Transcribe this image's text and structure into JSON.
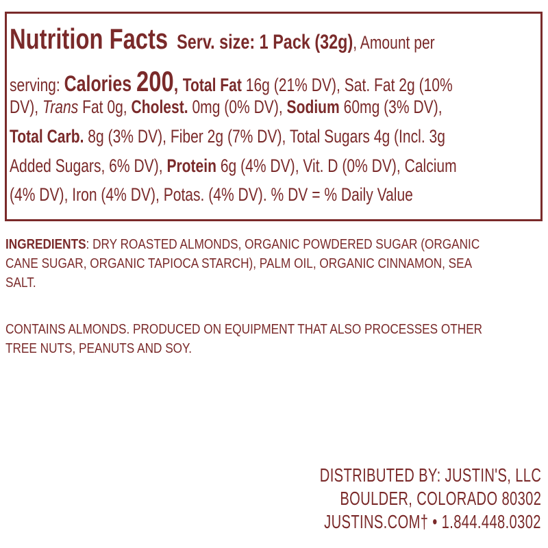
{
  "colors": {
    "text": "#7a2a2a",
    "border": "#7a2a2a",
    "background": "#ffffff"
  },
  "nutrition": {
    "lines": [
      [
        {
          "t": "Nutrition Facts",
          "s": "xl"
        },
        {
          "t": "  Serv. size: 1 Pack (32g)",
          "s": "md"
        },
        {
          "t": ", Amount per",
          "s": ""
        }
      ],
      [
        {
          "t": "serving: ",
          "s": ""
        },
        {
          "t": "Calories ",
          "s": "lg"
        },
        {
          "t": "200",
          "s": "xl"
        },
        {
          "t": ", ",
          "s": "md"
        },
        {
          "t": "Total Fat",
          "s": "b"
        },
        {
          "t": " 16g (21% DV), Sat. Fat 2g (10%",
          "s": ""
        }
      ],
      [
        {
          "t": "DV), ",
          "s": ""
        },
        {
          "t": "Trans",
          "s": "i"
        },
        {
          "t": " Fat 0g, ",
          "s": ""
        },
        {
          "t": "Cholest.",
          "s": "b"
        },
        {
          "t": " 0mg (0% DV), ",
          "s": ""
        },
        {
          "t": "Sodium",
          "s": "b"
        },
        {
          "t": " 60mg (3% DV),",
          "s": ""
        }
      ],
      [
        {
          "t": "Total Carb.",
          "s": "b"
        },
        {
          "t": " 8g (3% DV), Fiber 2g (7% DV), Total Sugars 4g (Incl. 3g",
          "s": ""
        }
      ],
      [
        {
          "t": "Added Sugars, 6% DV), ",
          "s": ""
        },
        {
          "t": "Protein",
          "s": "b"
        },
        {
          "t": " 6g (4% DV), Vit. D (0% DV), Calcium",
          "s": ""
        }
      ],
      [
        {
          "t": "(4% DV), Iron (4% DV), Potas. (4% DV). % DV = % Daily Value",
          "s": ""
        }
      ]
    ]
  },
  "ingredients": {
    "label": "INGREDIENTS",
    "lines": [
      ": DRY ROASTED ALMONDS, ORGANIC POWDERED SUGAR (ORGANIC",
      "CANE SUGAR, ORGANIC TAPIOCA STARCH), PALM OIL, ORGANIC CINNAMON, SEA",
      "SALT."
    ]
  },
  "allergen": {
    "lines": [
      "CONTAINS ALMONDS. PRODUCED ON EQUIPMENT THAT ALSO PROCESSES OTHER",
      "TREE NUTS, PEANUTS AND SOY."
    ]
  },
  "distributor": {
    "lines": [
      "DISTRIBUTED BY: JUSTIN'S, LLC",
      "BOULDER, COLORADO 80302",
      "JUSTINS.COM† • 1.844.448.0302"
    ]
  }
}
